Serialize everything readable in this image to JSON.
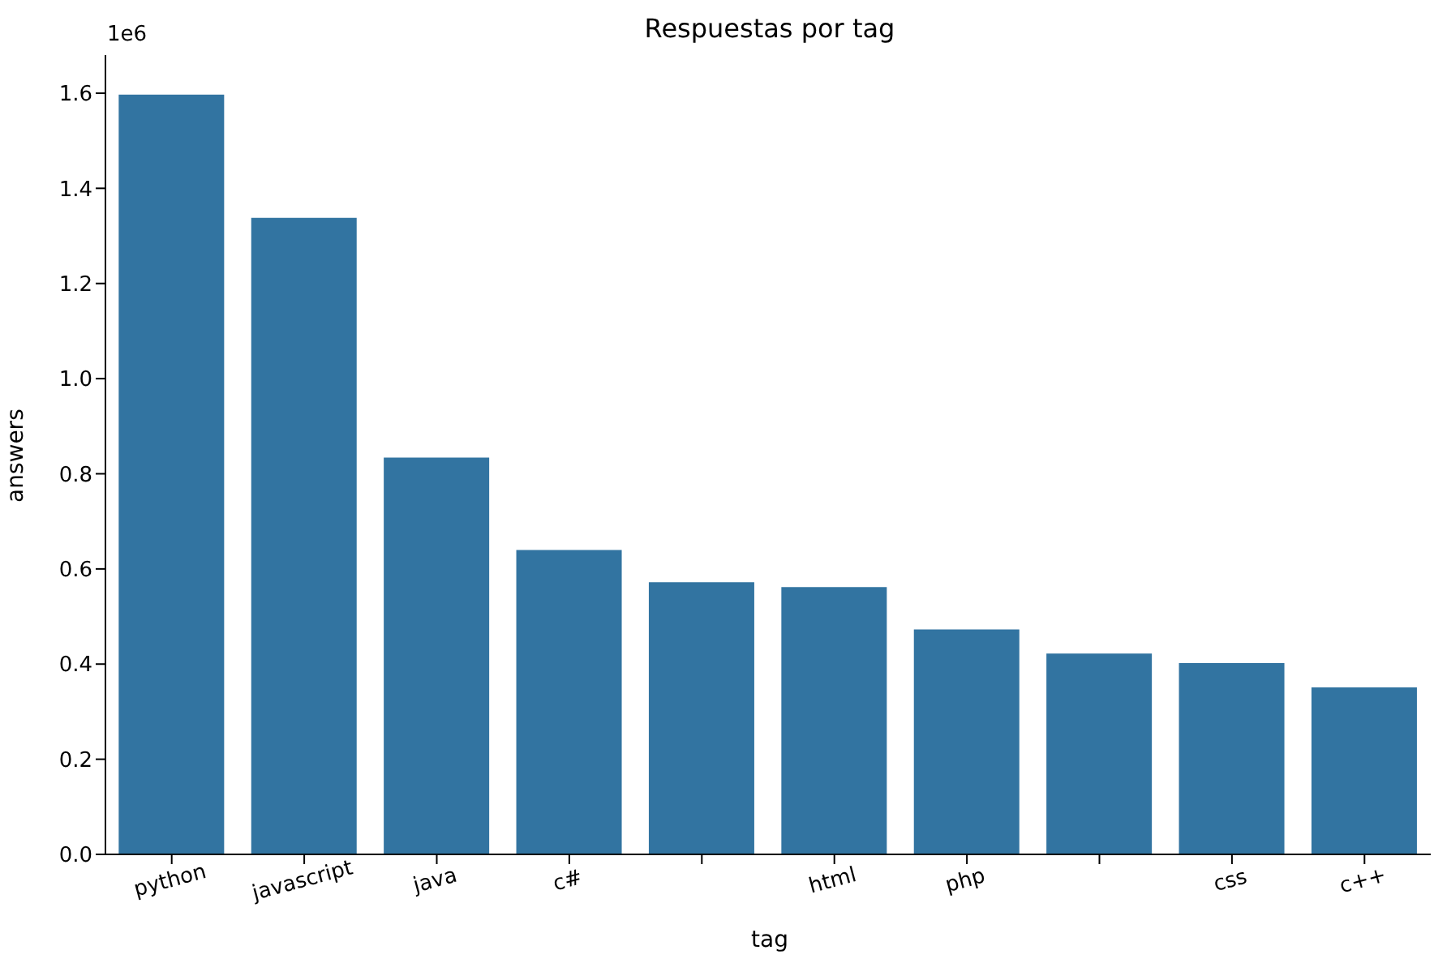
{
  "chart_data": {
    "type": "bar",
    "title": "Respuestas por tag",
    "xlabel": "tag",
    "ylabel": "answers",
    "categories": [
      "python",
      "javascript",
      "java",
      "c#",
      null,
      "html",
      "php",
      null,
      "css",
      "c++"
    ],
    "values": [
      1.597,
      1.338,
      0.834,
      0.64,
      0.572,
      0.562,
      0.473,
      0.422,
      0.402,
      0.351
    ],
    "color": "#3274a1",
    "ylim": [
      0,
      1.68
    ],
    "yticks": [
      {
        "value": 0,
        "label": "0.0"
      },
      {
        "value": 0.2,
        "label": "0.2"
      },
      {
        "value": 0.4,
        "label": "0.4"
      },
      {
        "value": 0.6,
        "label": "0.6"
      },
      {
        "value": 0.8,
        "label": "0.8"
      },
      {
        "value": 1.0,
        "label": "1.0"
      },
      {
        "value": 1.2,
        "label": "1.2"
      },
      {
        "value": 1.4,
        "label": "1.4"
      },
      {
        "value": 1.6,
        "label": "1.6"
      }
    ],
    "annotations": [
      "1e6"
    ],
    "grid": false,
    "legend": false
  }
}
